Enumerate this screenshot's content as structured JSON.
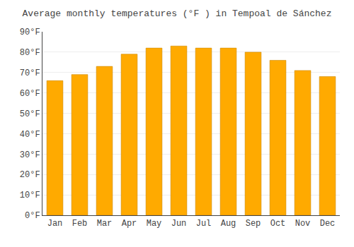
{
  "chart_data": {
    "type": "bar",
    "title": "Average monthly temperatures (°F ) in Tempoal de Sánchez",
    "categories": [
      "Jan",
      "Feb",
      "Mar",
      "Apr",
      "May",
      "Jun",
      "Jul",
      "Aug",
      "Sep",
      "Oct",
      "Nov",
      "Dec"
    ],
    "values": [
      66,
      69,
      73,
      79,
      82,
      83,
      82,
      82,
      80,
      76,
      71,
      68
    ],
    "color": "#FFAA00",
    "ylim": [
      0,
      90
    ],
    "yticks": [
      {
        "value": 0,
        "label": "0°F"
      },
      {
        "value": 10,
        "label": "10°F"
      },
      {
        "value": 20,
        "label": "20°F"
      },
      {
        "value": 30,
        "label": "30°F"
      },
      {
        "value": 40,
        "label": "40°F"
      },
      {
        "value": 50,
        "label": "50°F"
      },
      {
        "value": 60,
        "label": "60°F"
      },
      {
        "value": 70,
        "label": "70°F"
      },
      {
        "value": 80,
        "label": "80°F"
      },
      {
        "value": 90,
        "label": "90°F"
      }
    ],
    "grid": true
  }
}
